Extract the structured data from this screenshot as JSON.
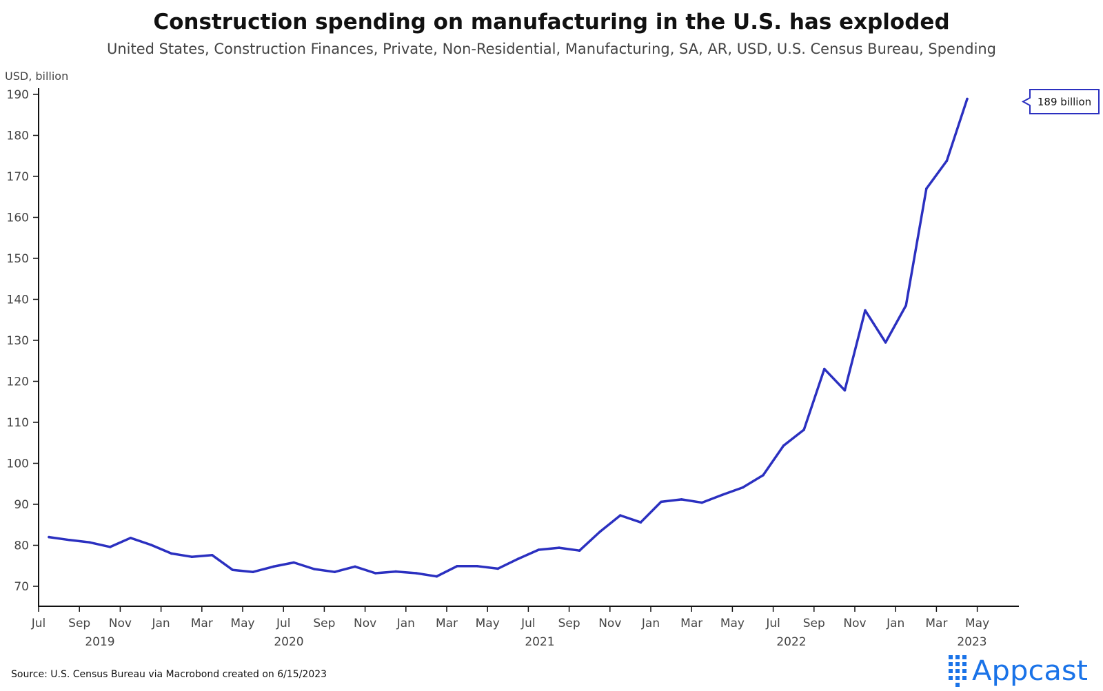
{
  "title": "Construction spending on manufacturing in the U.S. has exploded",
  "subtitle": "United States, Construction Finances, Private, Non-Residential, Manufacturing, SA, AR, USD, U.S. Census Bureau, Spending",
  "source": "Source: U.S. Census Bureau via Macrobond created on 6/15/2023",
  "logo": "Appcast",
  "colors": {
    "series": "#2b30c0",
    "axis": "#111111",
    "logo": "#1a73e8"
  },
  "chart_data": {
    "type": "line",
    "unit_label": "USD, billion",
    "ylim": [
      70,
      190
    ],
    "y_ticks": [
      70,
      80,
      90,
      100,
      110,
      120,
      130,
      140,
      150,
      160,
      170,
      180,
      190
    ],
    "x_tick_labels": [
      "Jul",
      "Sep",
      "Nov",
      "Jan",
      "Mar",
      "May",
      "Jul",
      "Sep",
      "Nov",
      "Jan",
      "Mar",
      "May",
      "Jul",
      "Sep",
      "Nov",
      "Jan",
      "Mar",
      "May",
      "Jul",
      "Sep",
      "Nov",
      "Jan",
      "Mar",
      "May"
    ],
    "year_labels": [
      "2019",
      "2020",
      "2021",
      "2022",
      "2023"
    ],
    "grid": false,
    "callout": "189 billion",
    "series": [
      {
        "x": [
          "2019-07",
          "2019-08",
          "2019-09",
          "2019-10",
          "2019-11",
          "2019-12",
          "2020-01",
          "2020-02",
          "2020-03",
          "2020-04",
          "2020-05",
          "2020-06",
          "2020-07",
          "2020-08",
          "2020-09",
          "2020-10",
          "2020-11",
          "2020-12",
          "2021-01",
          "2021-02",
          "2021-03",
          "2021-04",
          "2021-05",
          "2021-06",
          "2021-07",
          "2021-08",
          "2021-09",
          "2021-10",
          "2021-11",
          "2021-12",
          "2022-01",
          "2022-02",
          "2022-03",
          "2022-04",
          "2022-05",
          "2022-06",
          "2022-07",
          "2022-08",
          "2022-09",
          "2022-10",
          "2022-11",
          "2022-12",
          "2023-01",
          "2023-02",
          "2023-03",
          "2023-04"
        ],
        "values": [
          82.0,
          81.3,
          80.7,
          79.6,
          81.8,
          80.1,
          78.0,
          77.2,
          77.6,
          74.0,
          73.5,
          74.8,
          75.8,
          74.2,
          73.5,
          74.8,
          73.2,
          73.6,
          73.2,
          72.4,
          74.9,
          74.9,
          74.3,
          76.7,
          78.9,
          79.4,
          78.7,
          83.3,
          87.3,
          85.6,
          90.6,
          91.2,
          90.4,
          92.3,
          94.1,
          97.1,
          104.3,
          108.2,
          123.0,
          117.8,
          137.3,
          129.5,
          138.5,
          167.0,
          173.8,
          188.9
        ]
      }
    ]
  }
}
